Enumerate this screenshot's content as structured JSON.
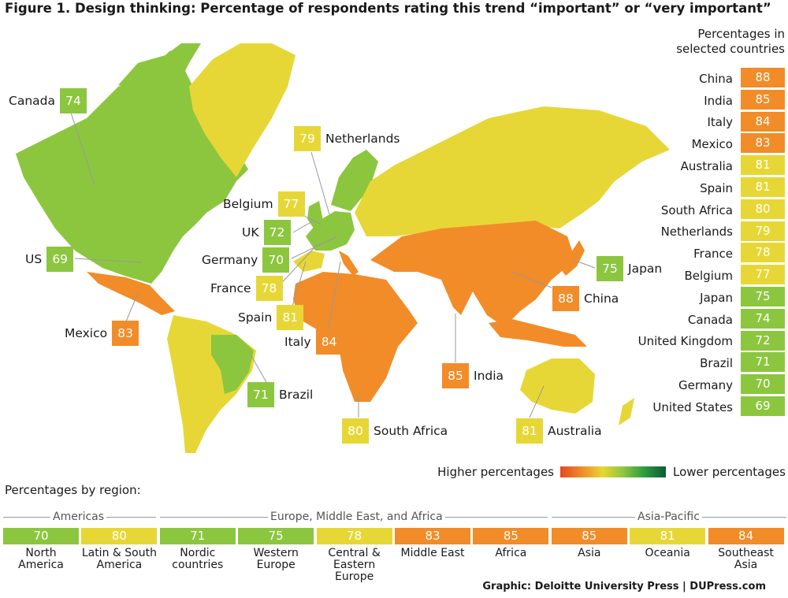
{
  "title": "Figure 1. Design thinking: Percentage of respondents rating this trend “important” or “very important”",
  "colors": {
    "orange": "#f28c28",
    "yellow": "#e7d736",
    "green": "#8cc63f",
    "land_light_yellow": "#e9d63a"
  },
  "map_callouts": [
    {
      "country": "Canada",
      "value": "74",
      "color": "#8cc63f"
    },
    {
      "country": "Netherlands",
      "value": "79",
      "color": "#e7d736"
    },
    {
      "country": "Belgium",
      "value": "77",
      "color": "#e7d736"
    },
    {
      "country": "UK",
      "value": "72",
      "color": "#8cc63f"
    },
    {
      "country": "Germany",
      "value": "70",
      "color": "#8cc63f"
    },
    {
      "country": "US",
      "value": "69",
      "color": "#8cc63f"
    },
    {
      "country": "France",
      "value": "78",
      "color": "#e7d736"
    },
    {
      "country": "Spain",
      "value": "81",
      "color": "#e7d736"
    },
    {
      "country": "Mexico",
      "value": "83",
      "color": "#f28c28"
    },
    {
      "country": "Italy",
      "value": "84",
      "color": "#f28c28"
    },
    {
      "country": "Brazil",
      "value": "71",
      "color": "#8cc63f"
    },
    {
      "country": "South Africa",
      "value": "80",
      "color": "#e7d736"
    },
    {
      "country": "India",
      "value": "85",
      "color": "#f28c28"
    },
    {
      "country": "Australia",
      "value": "81",
      "color": "#e7d736"
    },
    {
      "country": "China",
      "value": "88",
      "color": "#f28c28"
    },
    {
      "country": "Japan",
      "value": "75",
      "color": "#8cc63f"
    }
  ],
  "panel": {
    "title_line1": "Percentages in",
    "title_line2": "selected countries",
    "items": [
      {
        "name": "China",
        "value": "88",
        "color": "#f28c28"
      },
      {
        "name": "India",
        "value": "85",
        "color": "#f28c28"
      },
      {
        "name": "Italy",
        "value": "84",
        "color": "#f28c28"
      },
      {
        "name": "Mexico",
        "value": "83",
        "color": "#f28c28"
      },
      {
        "name": "Australia",
        "value": "81",
        "color": "#e7d736"
      },
      {
        "name": "Spain",
        "value": "81",
        "color": "#e7d736"
      },
      {
        "name": "South Africa",
        "value": "80",
        "color": "#e7d736"
      },
      {
        "name": "Netherlands",
        "value": "79",
        "color": "#e7d736"
      },
      {
        "name": "France",
        "value": "78",
        "color": "#e7d736"
      },
      {
        "name": "Belgium",
        "value": "77",
        "color": "#e7d736"
      },
      {
        "name": "Japan",
        "value": "75",
        "color": "#8cc63f"
      },
      {
        "name": "Canada",
        "value": "74",
        "color": "#8cc63f"
      },
      {
        "name": "United Kingdom",
        "value": "72",
        "color": "#8cc63f"
      },
      {
        "name": "Brazil",
        "value": "71",
        "color": "#8cc63f"
      },
      {
        "name": "Germany",
        "value": "70",
        "color": "#8cc63f"
      },
      {
        "name": "United States",
        "value": "69",
        "color": "#8cc63f"
      }
    ]
  },
  "legend": {
    "higher": "Higher percentages",
    "lower": "Lower percentages"
  },
  "regions_title": "Percentages by region:",
  "region_groups": [
    {
      "label": "Americas"
    },
    {
      "label": "Europe, Middle East, and Africa"
    },
    {
      "label": "Asia-Pacific"
    }
  ],
  "regions": [
    {
      "name_line1": "North",
      "name_line2": "America",
      "value": "70",
      "color": "#8cc63f"
    },
    {
      "name_line1": "Latin & South",
      "name_line2": "America",
      "value": "80",
      "color": "#e7d736"
    },
    {
      "name_line1": "Nordic",
      "name_line2": "countries",
      "value": "71",
      "color": "#8cc63f"
    },
    {
      "name_line1": "Western",
      "name_line2": "Europe",
      "value": "75",
      "color": "#8cc63f"
    },
    {
      "name_line1": "Central &",
      "name_line2": "Eastern Europe",
      "value": "78",
      "color": "#e7d736"
    },
    {
      "name_line1": "Middle East",
      "name_line2": "",
      "value": "83",
      "color": "#f28c28"
    },
    {
      "name_line1": "Africa",
      "name_line2": "",
      "value": "85",
      "color": "#f28c28"
    },
    {
      "name_line1": "Asia",
      "name_line2": "",
      "value": "85",
      "color": "#f28c28"
    },
    {
      "name_line1": "Oceania",
      "name_line2": "",
      "value": "81",
      "color": "#e7d736"
    },
    {
      "name_line1": "Southeast",
      "name_line2": "Asia",
      "value": "84",
      "color": "#f28c28"
    }
  ],
  "credit": "Graphic: Deloitte University Press  |  DUPress.com"
}
